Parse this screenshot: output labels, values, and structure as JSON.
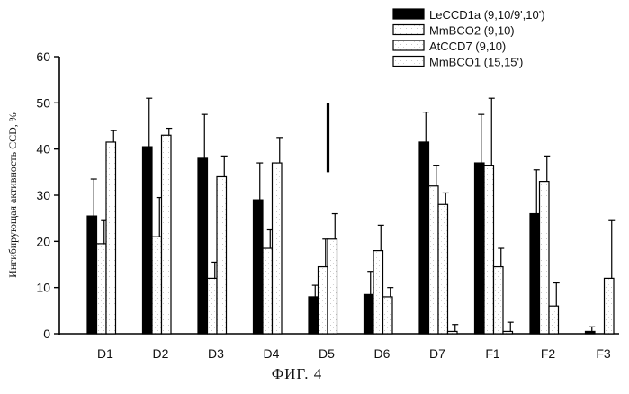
{
  "chart_data": {
    "type": "bar",
    "title": "",
    "caption": "ФИГ. 4",
    "xlabel": "",
    "ylabel": "Ингибирующая активность CCD, %",
    "ylim": [
      0,
      60
    ],
    "yticks": [
      "0",
      "10",
      "20",
      "30",
      "40",
      "50",
      "60"
    ],
    "categories": [
      "D1",
      "D2",
      "D3",
      "D4",
      "D5",
      "D6",
      "D7",
      "F1",
      "F2",
      "F3"
    ],
    "series": [
      {
        "name": "LeCCD1a (9,10/9',10')",
        "fill": "#000000",
        "values": [
          25.5,
          40.5,
          38,
          29,
          8,
          8.5,
          41.5,
          37,
          26,
          0.5
        ],
        "errors": [
          8,
          10.5,
          9.5,
          8,
          2.5,
          5,
          6.5,
          10.5,
          9.5,
          1
        ]
      },
      {
        "name": "MmBCO2 (9,10)",
        "fill": "#ffffff",
        "values": [
          19.5,
          21,
          12,
          18.5,
          14.5,
          18,
          32,
          36.5,
          33,
          null
        ],
        "errors": [
          5,
          8.5,
          3.5,
          4,
          6,
          5.5,
          4.5,
          14.5,
          5.5,
          null
        ]
      },
      {
        "name": "AtCCD7 (9,10)",
        "fill": "#ffffff",
        "values": [
          41.5,
          43,
          34,
          37,
          20.5,
          8,
          28,
          14.5,
          6,
          12
        ],
        "errors": [
          2.5,
          1.5,
          4.5,
          5.5,
          5.5,
          2,
          2.5,
          4,
          5,
          12.5
        ]
      },
      {
        "name": "MmBCO1 (15,15')",
        "fill": "#ffffff",
        "values": [
          null,
          null,
          null,
          null,
          null,
          null,
          0.5,
          0.5,
          null,
          null
        ],
        "errors": [
          null,
          null,
          null,
          null,
          null,
          null,
          1.5,
          2,
          null,
          null
        ]
      }
    ],
    "annotation": {
      "type": "vertical-mark",
      "category": "D5",
      "y_range": [
        35,
        50
      ]
    },
    "legend": {
      "placement": "top-right"
    }
  }
}
